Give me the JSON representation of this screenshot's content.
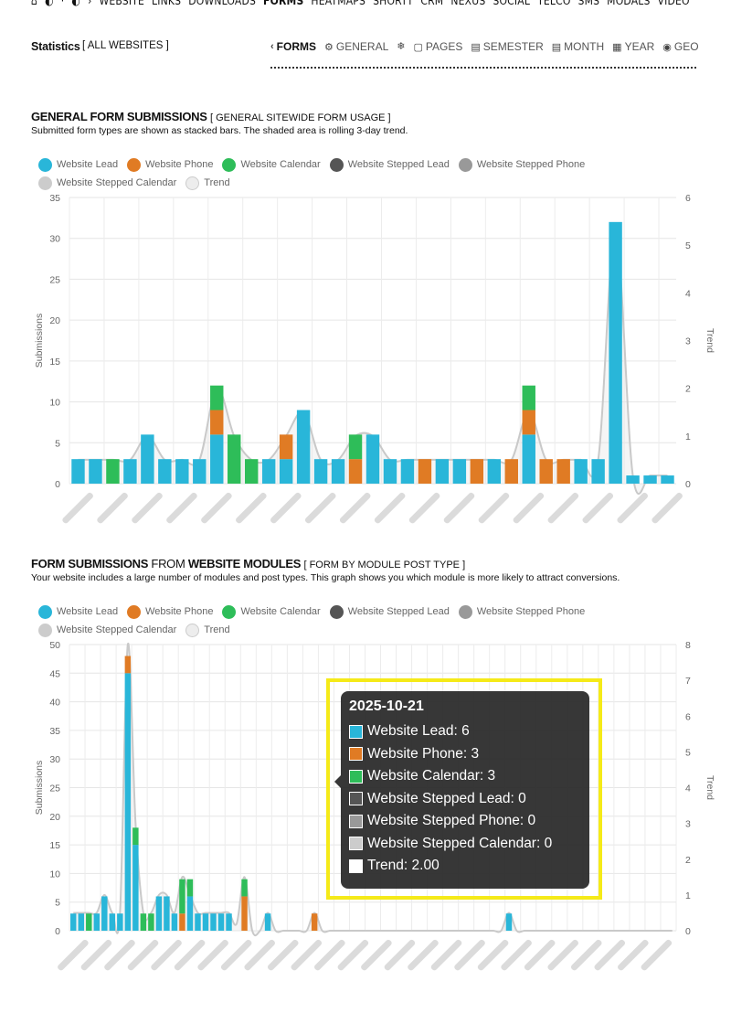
{
  "topnav": {
    "items": [
      {
        "label": "WEBSITE",
        "active": false
      },
      {
        "label": "LINKS",
        "active": false
      },
      {
        "label": "DOWNLOADS",
        "active": false
      },
      {
        "label": "FORMS",
        "active": true
      },
      {
        "label": "HEATMAPS",
        "active": false
      },
      {
        "label": "SHORTT",
        "active": false
      },
      {
        "label": "CRM",
        "active": false
      },
      {
        "label": "NEXUS",
        "active": false
      },
      {
        "label": "SOCIAL",
        "active": false
      },
      {
        "label": "TELCO",
        "active": false
      },
      {
        "label": "SMS",
        "active": false
      },
      {
        "label": "MODALS",
        "active": false
      },
      {
        "label": "VIDEO",
        "active": false
      }
    ]
  },
  "stats": {
    "title": "Statistics",
    "subtitle": "[ ALL WEBSITES ]",
    "tabs": [
      {
        "label": "FORMS",
        "icon": "chevron-left-icon",
        "glyph": "‹",
        "active": true
      },
      {
        "label": "GENERAL",
        "icon": "gear-icon",
        "glyph": "⚙",
        "active": false
      },
      {
        "label": "",
        "icon": "snowflake-icon",
        "glyph": "❄",
        "active": false
      },
      {
        "label": "PAGES",
        "icon": "page-icon",
        "glyph": "▢",
        "active": false
      },
      {
        "label": "SEMESTER",
        "icon": "calendar-icon",
        "glyph": "▤",
        "active": false
      },
      {
        "label": "MONTH",
        "icon": "calendar-icon",
        "glyph": "▤",
        "active": false
      },
      {
        "label": "YEAR",
        "icon": "calendar-icon",
        "glyph": "▦",
        "active": false
      },
      {
        "label": "GEO",
        "icon": "compass-icon",
        "glyph": "◉",
        "active": false
      }
    ]
  },
  "section1": {
    "title_bold": "GENERAL FORM SUBMISSIONS",
    "title_tag": "[ GENERAL SITEWIDE FORM USAGE ]",
    "description": "Submitted form types are shown as stacked bars. The shaded area is rolling 3-day trend."
  },
  "section2": {
    "title_bold_1": "FORM SUBMISSIONS",
    "title_light": "FROM",
    "title_bold_2": "WEBSITE MODULES",
    "title_tag": "[ FORM BY MODULE POST TYPE ]",
    "description": "Your website includes a large number of modules and post types. This graph shows you which module is more likely to attract conversions."
  },
  "legend": {
    "items": [
      {
        "label": "Website Lead",
        "color": "#29b6d9"
      },
      {
        "label": "Website Phone",
        "color": "#e07b24"
      },
      {
        "label": "Website Calendar",
        "color": "#2ebd59"
      },
      {
        "label": "Website Stepped Lead",
        "color": "#555555"
      },
      {
        "label": "Website Stepped Phone",
        "color": "#999999"
      },
      {
        "label": "Website Stepped Calendar",
        "color": "#cccccc"
      },
      {
        "label": "Trend",
        "color": "#ededed"
      }
    ]
  },
  "tooltip": {
    "title": "2025-10-21",
    "rows": [
      {
        "label": "Website Lead: 6",
        "color": "#29b6d9"
      },
      {
        "label": "Website Phone: 3",
        "color": "#e07b24"
      },
      {
        "label": "Website Calendar: 3",
        "color": "#2ebd59"
      },
      {
        "label": "Website Stepped Lead: 0",
        "color": "#555555"
      },
      {
        "label": "Website Stepped Phone: 0",
        "color": "#999999"
      },
      {
        "label": "Website Stepped Calendar: 0",
        "color": "#cccccc"
      },
      {
        "label": "Trend: 2.00",
        "color": "#ffffff"
      }
    ]
  },
  "chart_data": [
    {
      "type": "bar",
      "stacked": true,
      "ylabel": "Submissions",
      "y2label": "Trend",
      "ylim": [
        0,
        35
      ],
      "yticks": [
        0,
        5,
        10,
        15,
        20,
        25,
        30,
        35
      ],
      "y2lim": [
        0,
        6
      ],
      "y2ticks": [
        0,
        1,
        2,
        3,
        4,
        5,
        6
      ],
      "grid": true,
      "legend_position": "top-left",
      "series": [
        {
          "name": "Website Lead",
          "color": "#29b6d9",
          "values": [
            3,
            3,
            0,
            3,
            6,
            3,
            3,
            3,
            6,
            0,
            0,
            3,
            3,
            9,
            3,
            3,
            0,
            6,
            3,
            3,
            0,
            3,
            3,
            0,
            3,
            0,
            6,
            0,
            0,
            3,
            3,
            32,
            1,
            1,
            1
          ]
        },
        {
          "name": "Website Phone",
          "color": "#e07b24",
          "values": [
            0,
            0,
            0,
            0,
            0,
            0,
            0,
            0,
            3,
            0,
            0,
            0,
            3,
            0,
            0,
            0,
            3,
            0,
            0,
            0,
            3,
            0,
            0,
            3,
            0,
            3,
            3,
            3,
            3,
            0,
            0,
            0,
            0,
            0,
            0
          ]
        },
        {
          "name": "Website Calendar",
          "color": "#2ebd59",
          "values": [
            0,
            0,
            3,
            0,
            0,
            0,
            0,
            0,
            3,
            6,
            3,
            0,
            0,
            0,
            0,
            0,
            3,
            0,
            0,
            0,
            0,
            0,
            0,
            0,
            0,
            0,
            3,
            0,
            0,
            0,
            0,
            0,
            0,
            0,
            0
          ]
        },
        {
          "name": "Website Stepped Lead",
          "color": "#555555",
          "values": [
            0,
            0,
            0,
            0,
            0,
            0,
            0,
            0,
            0,
            0,
            0,
            0,
            0,
            0,
            0,
            0,
            0,
            0,
            0,
            0,
            0,
            0,
            0,
            0,
            0,
            0,
            0,
            0,
            0,
            0,
            0,
            0,
            0,
            0,
            0
          ]
        },
        {
          "name": "Website Stepped Phone",
          "color": "#999999",
          "values": [
            0,
            0,
            0,
            0,
            0,
            0,
            0,
            0,
            0,
            0,
            0,
            0,
            0,
            0,
            0,
            0,
            0,
            0,
            0,
            0,
            0,
            0,
            0,
            0,
            0,
            0,
            0,
            0,
            0,
            0,
            0,
            0,
            0,
            0,
            0
          ]
        },
        {
          "name": "Website Stepped Calendar",
          "color": "#cccccc",
          "values": [
            0,
            0,
            0,
            0,
            0,
            0,
            0,
            0,
            0,
            0,
            0,
            0,
            0,
            0,
            0,
            0,
            0,
            0,
            0,
            0,
            0,
            0,
            0,
            0,
            0,
            0,
            0,
            0,
            0,
            0,
            0,
            0,
            0,
            0,
            0
          ]
        }
      ],
      "trend": {
        "name": "Trend",
        "values": [
          0.5,
          0.5,
          0.5,
          0.5,
          1.0,
          0.5,
          0.5,
          0.5,
          2.0,
          1.0,
          0.5,
          0.5,
          1.0,
          1.5,
          0.5,
          0.5,
          1.0,
          1.0,
          0.5,
          0.5,
          0.5,
          0.5,
          0.5,
          0.5,
          0.5,
          0.5,
          1.5,
          0.5,
          0.5,
          0.5,
          0.5,
          5.33,
          0.17,
          0.17,
          0.17
        ]
      }
    },
    {
      "type": "bar",
      "stacked": true,
      "ylabel": "Submissions",
      "y2label": "Trend",
      "ylim": [
        0,
        50
      ],
      "yticks": [
        0,
        5,
        10,
        15,
        20,
        25,
        30,
        35,
        40,
        45,
        50
      ],
      "y2lim": [
        0,
        8
      ],
      "y2ticks": [
        0,
        1,
        2,
        3,
        4,
        5,
        6,
        7,
        8
      ],
      "grid": true,
      "legend_position": "top-left",
      "series": [
        {
          "name": "Website Lead",
          "color": "#29b6d9",
          "values": [
            3,
            3,
            0,
            3,
            6,
            3,
            3,
            45,
            15,
            0,
            0,
            6,
            6,
            3,
            0,
            6,
            3,
            3,
            3,
            3,
            3,
            0,
            0,
            0,
            0,
            3,
            0,
            0,
            0,
            0,
            0,
            0,
            0,
            0,
            0,
            0,
            0,
            0,
            0,
            0,
            0,
            0,
            0,
            0,
            0,
            0,
            0,
            0,
            0,
            0,
            0,
            0,
            0,
            0,
            0,
            0,
            3,
            0,
            0,
            0,
            0,
            0,
            0,
            0,
            0,
            0,
            0,
            0,
            0,
            0,
            0,
            0,
            0,
            0,
            0,
            0,
            0,
            0
          ]
        },
        {
          "name": "Website Phone",
          "color": "#e07b24",
          "values": [
            0,
            0,
            0,
            0,
            0,
            0,
            0,
            3,
            0,
            0,
            0,
            0,
            0,
            0,
            3,
            0,
            0,
            0,
            0,
            0,
            0,
            0,
            6,
            0,
            0,
            0,
            0,
            0,
            0,
            0,
            0,
            3,
            0,
            0,
            0,
            0,
            0,
            0,
            0,
            0,
            0,
            0,
            0,
            0,
            0,
            0,
            0,
            0,
            0,
            0,
            0,
            0,
            0,
            0,
            0,
            0,
            0,
            0,
            0,
            0,
            0,
            0,
            0,
            0,
            0,
            0,
            0,
            0,
            0,
            0,
            0,
            0,
            0,
            0,
            0,
            0,
            0,
            0
          ]
        },
        {
          "name": "Website Calendar",
          "color": "#2ebd59",
          "values": [
            0,
            0,
            3,
            0,
            0,
            0,
            0,
            0,
            3,
            3,
            3,
            0,
            0,
            0,
            6,
            3,
            0,
            0,
            0,
            0,
            0,
            0,
            3,
            0,
            0,
            0,
            0,
            0,
            0,
            0,
            0,
            0,
            0,
            0,
            0,
            0,
            0,
            0,
            0,
            0,
            0,
            0,
            0,
            0,
            0,
            0,
            0,
            0,
            0,
            0,
            0,
            0,
            0,
            0,
            0,
            0,
            0,
            0,
            0,
            0,
            0,
            0,
            0,
            0,
            0,
            0,
            0,
            0,
            0,
            0,
            0,
            0,
            0,
            0,
            0,
            0,
            0,
            0
          ]
        },
        {
          "name": "Website Stepped Lead",
          "color": "#555555",
          "values": []
        },
        {
          "name": "Website Stepped Phone",
          "color": "#999999",
          "values": []
        },
        {
          "name": "Website Stepped Calendar",
          "color": "#cccccc",
          "values": []
        }
      ],
      "trend": {
        "name": "Trend",
        "values": [
          0.5,
          0.5,
          0.5,
          0.5,
          1.0,
          0.5,
          0.5,
          8.0,
          3.0,
          0.5,
          0.5,
          1.0,
          1.0,
          0.5,
          1.5,
          1.0,
          0.5,
          0.5,
          0.5,
          0.5,
          0.5,
          0.2,
          1.5,
          0,
          0,
          0.5,
          0,
          0,
          0,
          0,
          0,
          0.5,
          0,
          0,
          0,
          0,
          0,
          0,
          0,
          0,
          0,
          0,
          0,
          0,
          0,
          0,
          0,
          0,
          0,
          0,
          0,
          0,
          0,
          0,
          0,
          0,
          0.5,
          0,
          0,
          0,
          0,
          0,
          0,
          0,
          0,
          0,
          0,
          0,
          0,
          0,
          0,
          0,
          0,
          0,
          0,
          0,
          0,
          0
        ]
      }
    }
  ]
}
